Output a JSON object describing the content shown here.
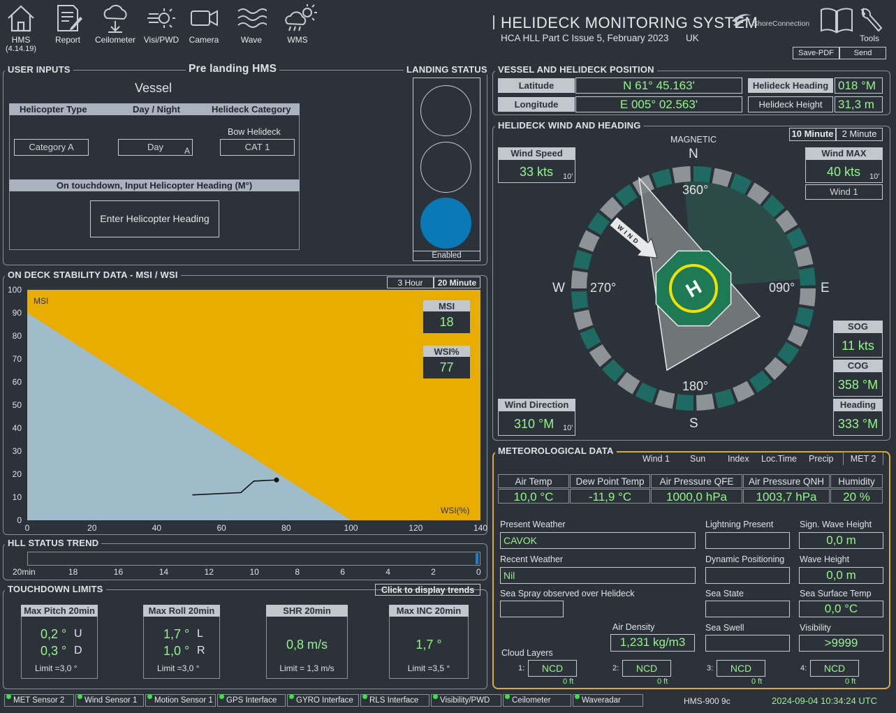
{
  "toolbar": {
    "items": [
      {
        "label": "HMS",
        "sub": "(4.14.19)",
        "icon": "home-icon"
      },
      {
        "label": "Report",
        "icon": "report-icon"
      },
      {
        "label": "Ceilometer",
        "icon": "ceilometer-icon"
      },
      {
        "label": "Visi/PWD",
        "icon": "visibility-icon"
      },
      {
        "label": "Camera",
        "icon": "camera-icon"
      },
      {
        "label": "Wave",
        "icon": "wave-icon"
      },
      {
        "label": "WMS",
        "icon": "weather-icon"
      }
    ]
  },
  "header": {
    "title": "HELIDECK MONITORING SYSTEM",
    "subtitle": "HCA HLL Part C Issue 5, February 2023",
    "region": "UK",
    "logo": "ShoreConnection",
    "tools": "Tools",
    "save_pdf": "Save-PDF",
    "send": "Send"
  },
  "user_inputs": {
    "title": "USER INPUTS",
    "mode": "Pre landing HMS",
    "vessel": "Vessel",
    "col_type": "Helicopter Type",
    "col_daynight": "Day / Night",
    "col_category": "Helideck Category",
    "bow": "Bow Helideck",
    "type_value": "Category A",
    "daynight_value": "Day",
    "daynight_flag": "A",
    "category_value": "CAT 1",
    "touchdown_hdr": "On touchdown, Input Helicopter Heading (M°)",
    "enter_heading": "Enter Helicopter Heading"
  },
  "landing_status": {
    "title": "LANDING STATUS",
    "state": "Enabled",
    "lights": [
      "off",
      "off",
      "blue"
    ]
  },
  "position": {
    "title": "VESSEL AND HELIDECK POSITION",
    "lat_label": "Latitude",
    "lat": "N 61° 45.163'",
    "lon_label": "Longitude",
    "lon": "E 005° 02.563'",
    "hdg_label": "Helideck Heading",
    "hdg": "018 °M",
    "hgt_label": "Helideck Height",
    "hgt": "31,3 m"
  },
  "wind": {
    "title": "HELIDECK WIND AND HEADING",
    "tab1": "10 Minute",
    "tab2": "2 Minute",
    "magnetic": "MAGNETIC",
    "n": "N",
    "s": "S",
    "e": "E",
    "w": "W",
    "d360": "360°",
    "d090": "090°",
    "d180": "180°",
    "d270": "270°",
    "wind_text": "WIND",
    "speed_label": "Wind Speed",
    "speed": "33 kts",
    "speed_avg": "10'",
    "max_label": "Wind MAX",
    "max": "40 kts",
    "max_avg": "10'",
    "sensor": "Wind 1",
    "dir_label": "Wind Direction",
    "dir": "310 °M",
    "dir_avg": "10'",
    "sog_label": "SOG",
    "sog": "11  kts",
    "cog_label": "COG",
    "cog": "358 °M",
    "heading_label": "Heading",
    "heading": "333 °M",
    "helideck_mark": "H"
  },
  "stability": {
    "title": "ON DECK STABILITY DATA - MSI / WSI",
    "tab1": "3 Hour",
    "tab2": "20 Minute",
    "msi_axis": "MSI",
    "wsi_axis": "WSI(%)",
    "msi_label": "MSI",
    "msi": "18",
    "wsi_label": "WSI%",
    "wsi": "77"
  },
  "chart_data": {
    "type": "area",
    "title": "",
    "xlabel": "WSI(%)",
    "ylabel": "MSI",
    "xlim": [
      0,
      140
    ],
    "ylim": [
      0,
      100
    ],
    "xticks": [
      0,
      20,
      40,
      60,
      80,
      100,
      120,
      140
    ],
    "yticks": [
      0,
      10,
      20,
      30,
      40,
      50,
      60,
      70,
      80,
      90,
      100
    ],
    "limit_line": [
      {
        "x": 0,
        "y": 90
      },
      {
        "x": 100,
        "y": 0
      }
    ],
    "trace": [
      {
        "x": 51,
        "y": 11
      },
      {
        "x": 66,
        "y": 12
      },
      {
        "x": 70,
        "y": 17
      },
      {
        "x": 77,
        "y": 17.5
      }
    ],
    "colors": {
      "safe": "#9fbccb",
      "unsafe": "#e9ad00"
    }
  },
  "trend": {
    "title": "HLL STATUS TREND",
    "ticks": [
      "20min",
      "18",
      "16",
      "14",
      "12",
      "10",
      "8",
      "6",
      "4",
      "2",
      "0"
    ]
  },
  "touchdown": {
    "title": "TOUCHDOWN LIMITS",
    "trends_btn": "Click to display trends",
    "pitch": {
      "label": "Max Pitch 20min",
      "v1": "0,2 °",
      "d1": "U",
      "v2": "0,3 °",
      "d2": "D",
      "limit": "Limit =3,0 °"
    },
    "roll": {
      "label": "Max Roll 20min",
      "v1": "1,7 °",
      "d1": "L",
      "v2": "1,0 °",
      "d2": "R",
      "limit": "Limit =3,0 °"
    },
    "shr": {
      "label": "SHR 20min",
      "v": "0,8 m/s",
      "limit": "Limit = 1,3 m/s"
    },
    "inc": {
      "label": "Max INC 20min",
      "v": "1,7 °",
      "limit": "Limit =3,5 °"
    }
  },
  "met": {
    "title": "METEOROLOGICAL DATA",
    "tabs": [
      "Wind 1",
      "Sun",
      "Index",
      "Loc.Time",
      "Precip",
      "MET 2"
    ],
    "heads": [
      "Air Temp",
      "Dew Point Temp",
      "Air Pressure QFE",
      "Air Pressure QNH",
      "Humidity"
    ],
    "vals": [
      "10,0 °C",
      "-11,9 °C",
      "1000,0 hPa",
      "1003,7 hPa",
      "20 %"
    ],
    "present_weather_label": "Present Weather",
    "present_weather": "CAVOK",
    "recent_weather_label": "Recent Weather",
    "recent_weather": "Nil",
    "spray_label": "Sea Spray observed over Helideck",
    "spray": "",
    "lightning_label": "Lightning Present",
    "dp_label": "Dynamic Positioning",
    "sea_state_label": "Sea State",
    "sea_swell_label": "Sea Swell",
    "sig_wave_label": "Sign. Wave Height",
    "sig_wave": "0,0 m",
    "wave_label": "Wave Height",
    "wave": "0,0 m",
    "sst_label": "Sea Surface Temp",
    "sst": "0,0 °C",
    "vis_label": "Visibility",
    "vis": ">9999",
    "density_label": "Air Density",
    "density": "1,231 kg/m3",
    "cloud_label": "Cloud Layers",
    "clouds": [
      {
        "n": "1:",
        "v": "NCD",
        "ft": "0 ft"
      },
      {
        "n": "2:",
        "v": "NCD",
        "ft": "0 ft"
      },
      {
        "n": "3:",
        "v": "NCD",
        "ft": "0 ft"
      },
      {
        "n": "4:",
        "v": "NCD",
        "ft": "0 ft"
      }
    ]
  },
  "statusbar": {
    "items": [
      "MET Sensor 2",
      "Wind Sensor 1",
      "Motion Sensor 1",
      "GPS Interface",
      "GYRO Interface",
      "RLS Interface",
      "Visibility/PWD",
      "Ceilometer",
      "Waveradar"
    ],
    "model": "HMS-900 9c",
    "datetime": "2024-09-04 10:34:24 UTC"
  }
}
